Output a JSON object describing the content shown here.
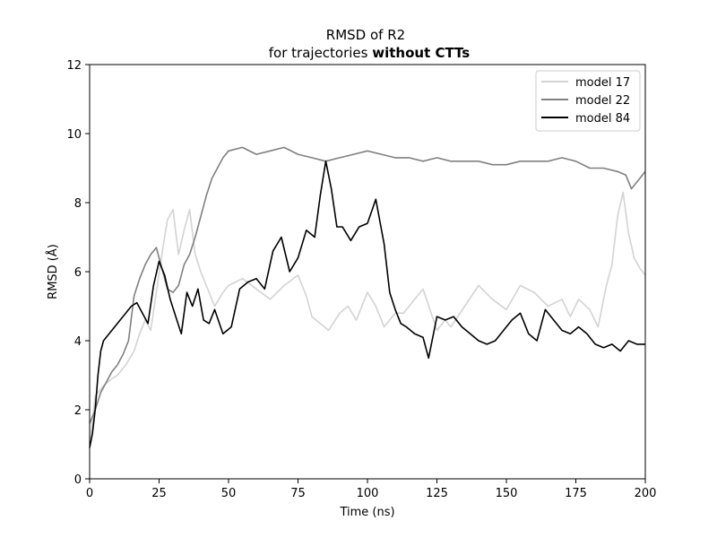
{
  "chart_data": {
    "type": "line",
    "title": "RMSD of R2",
    "subtitle_prefix": "for trajectories ",
    "subtitle_bold": "without CTTs",
    "xlabel": "Time (ns)",
    "ylabel": "RMSD (Å)",
    "xlim": [
      0,
      200
    ],
    "ylim": [
      0,
      12
    ],
    "x_ticks": [
      0,
      25,
      50,
      75,
      100,
      125,
      150,
      175,
      200
    ],
    "y_ticks": [
      0,
      2,
      4,
      6,
      8,
      10,
      12
    ],
    "grid": false,
    "legend_position": "top-right",
    "series": [
      {
        "name": "model 17",
        "color": "#d3d3d3",
        "x": [
          0,
          2,
          5,
          8,
          10,
          13,
          16,
          18,
          20,
          22,
          24,
          26,
          28,
          30,
          32,
          34,
          36,
          38,
          40,
          42,
          45,
          48,
          50,
          55,
          60,
          65,
          70,
          75,
          78,
          80,
          83,
          86,
          90,
          93,
          96,
          100,
          103,
          106,
          110,
          113,
          117,
          120,
          125,
          128,
          130,
          135,
          140,
          145,
          150,
          155,
          160,
          165,
          170,
          173,
          176,
          180,
          183,
          186,
          188,
          190,
          192,
          194,
          196,
          198,
          200
        ],
        "y": [
          0.9,
          2.4,
          2.7,
          2.9,
          3.0,
          3.3,
          3.7,
          4.2,
          4.6,
          4.3,
          5.4,
          6.5,
          7.5,
          7.8,
          6.5,
          7.2,
          7.8,
          6.5,
          6.0,
          5.6,
          5.0,
          5.4,
          5.6,
          5.8,
          5.5,
          5.2,
          5.6,
          5.9,
          5.3,
          4.7,
          4.5,
          4.3,
          4.8,
          5.0,
          4.6,
          5.4,
          5.0,
          4.4,
          4.8,
          4.8,
          5.2,
          5.5,
          4.3,
          4.6,
          4.4,
          5.0,
          5.6,
          5.2,
          4.9,
          5.6,
          5.4,
          5.0,
          5.2,
          4.7,
          5.2,
          4.9,
          4.4,
          5.6,
          6.2,
          7.6,
          8.3,
          7.1,
          6.4,
          6.1,
          5.9
        ]
      },
      {
        "name": "model 22",
        "color": "#808080",
        "x": [
          0,
          2,
          4,
          6,
          8,
          10,
          12,
          14,
          16,
          18,
          20,
          22,
          24,
          26,
          28,
          30,
          32,
          34,
          36,
          38,
          40,
          42,
          44,
          46,
          48,
          50,
          55,
          60,
          65,
          70,
          75,
          80,
          85,
          90,
          95,
          100,
          105,
          110,
          115,
          120,
          125,
          130,
          135,
          140,
          145,
          150,
          155,
          160,
          165,
          170,
          175,
          180,
          185,
          190,
          193,
          195,
          197,
          200
        ],
        "y": [
          1.6,
          2.0,
          2.5,
          2.8,
          3.1,
          3.3,
          3.6,
          4.0,
          5.3,
          5.8,
          6.2,
          6.5,
          6.7,
          6.1,
          5.5,
          5.4,
          5.6,
          6.2,
          6.5,
          7.0,
          7.6,
          8.2,
          8.7,
          9.0,
          9.3,
          9.5,
          9.6,
          9.4,
          9.5,
          9.6,
          9.4,
          9.3,
          9.2,
          9.3,
          9.4,
          9.5,
          9.4,
          9.3,
          9.3,
          9.2,
          9.3,
          9.2,
          9.2,
          9.2,
          9.1,
          9.1,
          9.2,
          9.2,
          9.2,
          9.3,
          9.2,
          9.0,
          9.0,
          8.9,
          8.8,
          8.4,
          8.6,
          8.9
        ]
      },
      {
        "name": "model 84",
        "color": "#000000",
        "x": [
          0,
          1,
          2,
          3,
          4,
          5,
          7,
          9,
          11,
          13,
          15,
          17,
          19,
          21,
          23,
          25,
          27,
          29,
          31,
          33,
          35,
          37,
          39,
          41,
          43,
          45,
          48,
          51,
          54,
          57,
          60,
          63,
          66,
          69,
          72,
          75,
          78,
          81,
          83,
          85,
          87,
          89,
          91,
          94,
          97,
          100,
          103,
          106,
          108,
          110,
          112,
          114,
          117,
          120,
          122,
          125,
          128,
          131,
          134,
          137,
          140,
          143,
          146,
          149,
          152,
          155,
          158,
          161,
          164,
          167,
          170,
          173,
          176,
          179,
          182,
          185,
          188,
          191,
          194,
          197,
          200
        ],
        "y": [
          0.9,
          1.3,
          2.0,
          3.0,
          3.7,
          4.0,
          4.2,
          4.4,
          4.6,
          4.8,
          5.0,
          5.1,
          4.8,
          4.5,
          5.6,
          6.3,
          5.9,
          5.2,
          4.7,
          4.2,
          5.4,
          5.0,
          5.5,
          4.6,
          4.5,
          4.9,
          4.2,
          4.4,
          5.5,
          5.7,
          5.8,
          5.5,
          6.6,
          7.0,
          6.0,
          6.4,
          7.2,
          7.0,
          8.2,
          9.2,
          8.4,
          7.3,
          7.3,
          6.9,
          7.3,
          7.4,
          8.1,
          6.8,
          5.4,
          4.9,
          4.5,
          4.4,
          4.2,
          4.1,
          3.5,
          4.7,
          4.6,
          4.7,
          4.4,
          4.2,
          4.0,
          3.9,
          4.0,
          4.3,
          4.6,
          4.8,
          4.2,
          4.0,
          4.9,
          4.6,
          4.3,
          4.2,
          4.4,
          4.2,
          3.9,
          3.8,
          3.9,
          3.7,
          4.0,
          3.9,
          3.9
        ]
      }
    ]
  }
}
